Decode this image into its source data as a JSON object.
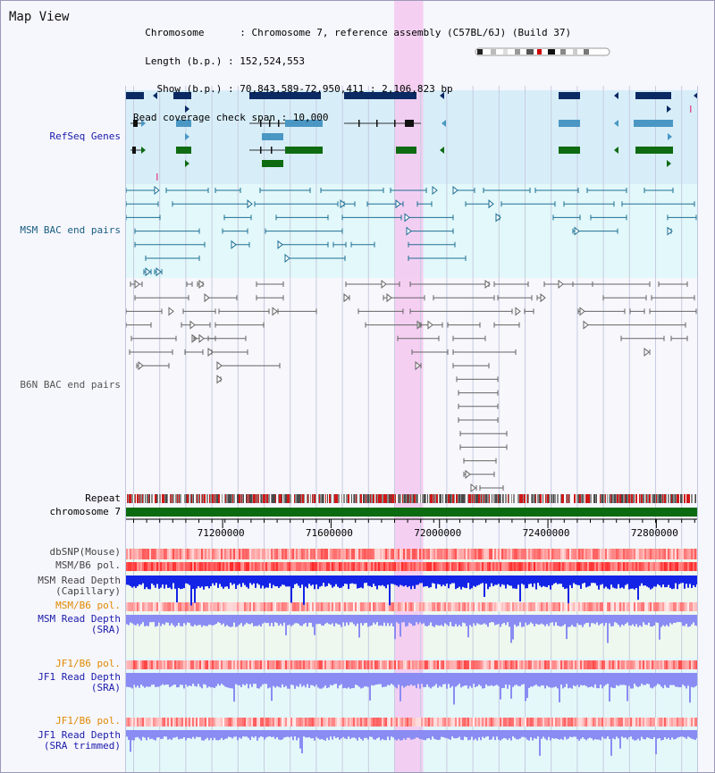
{
  "map_title": "Map View",
  "info_lines": [
    "  Chromosome      : Chromosome 7, reference assembly (C57BL/6J) (Build 37)",
    "  Length (b.p.) : 152,524,553",
    "    Show (b.p.) : 70,843,589-72,950,411 : 2,106,823 bp",
    "Read coverage check span : 10,000"
  ],
  "view": {
    "start": 70843589,
    "end": 72950411
  },
  "highlight": {
    "start": 71833000,
    "end": 71940000
  },
  "ruler_ticks": [
    "71200000",
    "71600000",
    "72000000",
    "72400000",
    "72800000"
  ],
  "colors": {
    "refseq_bg": "#d7eef9",
    "msm_bg": "#e2f8fa",
    "b6n_bg": "#f7f7fc",
    "highlight": "#f4c8f0",
    "grid": "#c8cce0",
    "refseq_dark": "#0b2a63",
    "refseq_mid": "#4b97c4",
    "refseq_green": "#0f6b12",
    "msm_bac": "#1f6f94",
    "b6n_bac": "#666666",
    "chromosome": "#0a6b10",
    "read_depth_capillary": "#1424e6",
    "read_depth_sra": "#8a8cf3",
    "label_msm_depth": "#1a1aaa",
    "label_pol_orange": "#e08a00",
    "label_pol_gray": "#444444"
  },
  "tracks": {
    "refseq": "RefSeq Genes",
    "msm_bac": "MSM BAC end pairs",
    "b6n_bac": "B6N BAC end pairs",
    "repeat": "Repeat",
    "chromosome": "chromosome 7",
    "dbsnp": "dbSNP(Mouse)",
    "msm_b6_pol_1": "MSM/B6 pol.",
    "msm_depth_cap": [
      "MSM Read Depth",
      "(Capillary)"
    ],
    "msm_b6_pol_2": "MSM/B6 pol.",
    "msm_depth_sra": [
      "MSM Read Depth",
      "(SRA)"
    ],
    "jf1_b6_pol_1": "JF1/B6 pol.",
    "jf1_depth_sra": [
      "JF1 Read Depth",
      "(SRA)"
    ],
    "jf1_b6_pol_2": "JF1/B6 pol.",
    "jf1_depth_trim": [
      "JF1 Read Depth",
      "(SRA trimmed)"
    ]
  }
}
